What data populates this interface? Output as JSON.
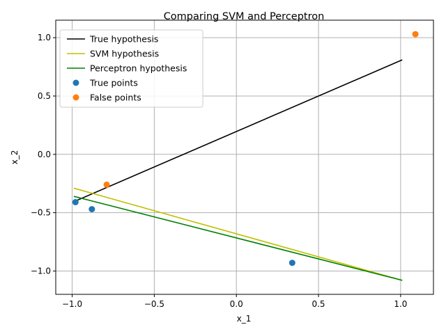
{
  "chart_data": {
    "type": "line",
    "title": "Comparing SVM and Perceptron",
    "xlabel": "x_1",
    "ylabel": "x_2",
    "xlim": [
      -1.1,
      1.2
    ],
    "ylim": [
      -1.2,
      1.15
    ],
    "xticks": [
      -1.0,
      -0.5,
      0.0,
      0.5,
      1.0
    ],
    "xtick_labels": [
      "−1.0",
      "−0.5",
      "0.0",
      "0.5",
      "1.0"
    ],
    "yticks": [
      -1.0,
      -0.5,
      0.0,
      0.5,
      1.0
    ],
    "ytick_labels": [
      "−1.0",
      "−0.5",
      "0.0",
      "0.5",
      "1.0"
    ],
    "grid": true,
    "legend_position": "top-left",
    "lines": [
      {
        "name": "True hypothesis",
        "color": "#000000",
        "x": [
          -0.98,
          1.01
        ],
        "y": [
          -0.4,
          0.81
        ]
      },
      {
        "name": "SVM hypothesis",
        "color": "#bfbf00",
        "x": [
          -0.99,
          1.01
        ],
        "y": [
          -0.29,
          -1.08
        ]
      },
      {
        "name": "Perceptron hypothesis",
        "color": "#008000",
        "x": [
          -0.99,
          1.01
        ],
        "y": [
          -0.36,
          -1.08
        ]
      }
    ],
    "scatter": [
      {
        "name": "True points",
        "color": "#1f77b4",
        "x": [
          -0.98,
          -0.88,
          0.34
        ],
        "y": [
          -0.41,
          -0.47,
          -0.93
        ]
      },
      {
        "name": "False points",
        "color": "#ff7f0e",
        "x": [
          -0.79,
          1.09
        ],
        "y": [
          -0.26,
          1.03
        ]
      }
    ]
  }
}
